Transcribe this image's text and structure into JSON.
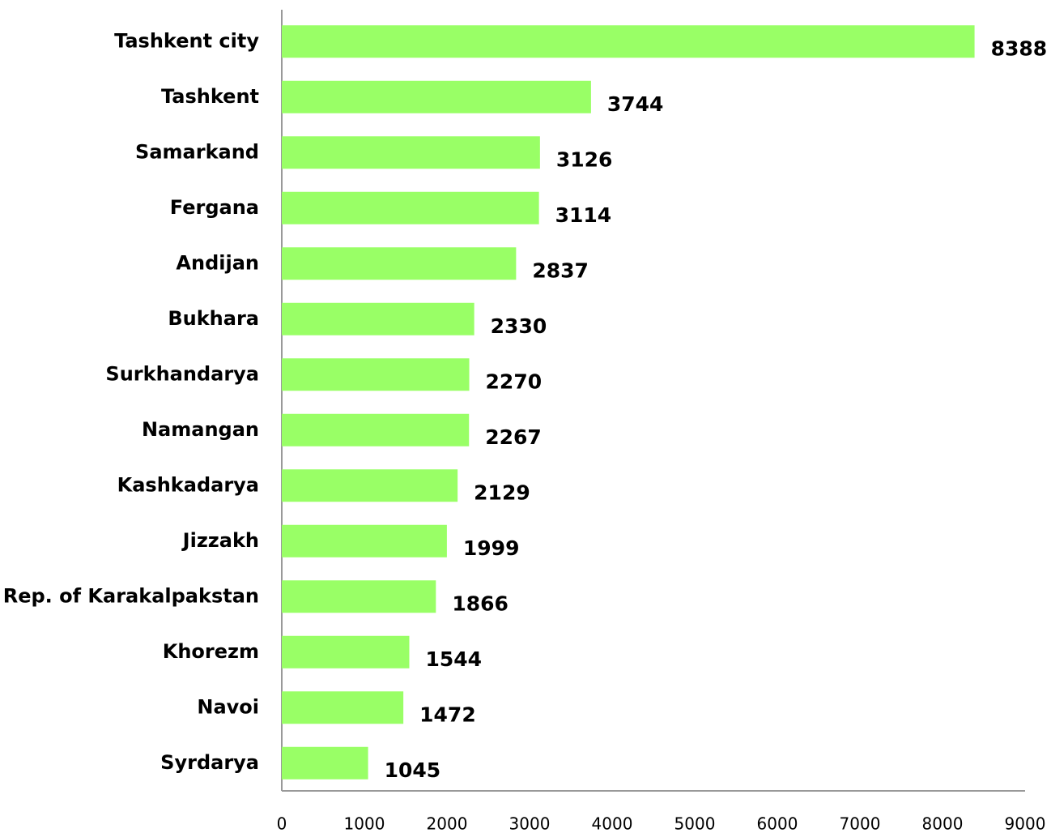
{
  "chart_data": {
    "type": "bar",
    "orientation": "horizontal",
    "categories": [
      "Tashkent city",
      "Tashkent",
      "Samarkand",
      "Fergana",
      "Andijan",
      "Bukhara",
      "Surkhandarya",
      "Namangan",
      "Kashkadarya",
      "Jizzakh",
      "Rep. of Karakalpakstan",
      "Khorezm",
      "Navoi",
      "Syrdarya"
    ],
    "values": [
      8388,
      3744,
      3126,
      3114,
      2837,
      2330,
      2270,
      2267,
      2129,
      1999,
      1866,
      1544,
      1472,
      1045
    ],
    "color": "#99ff66",
    "xlim": [
      0,
      9000
    ],
    "xticks": [
      0,
      1000,
      2000,
      3000,
      4000,
      5000,
      6000,
      7000,
      8000,
      9000
    ],
    "grid": false
  }
}
